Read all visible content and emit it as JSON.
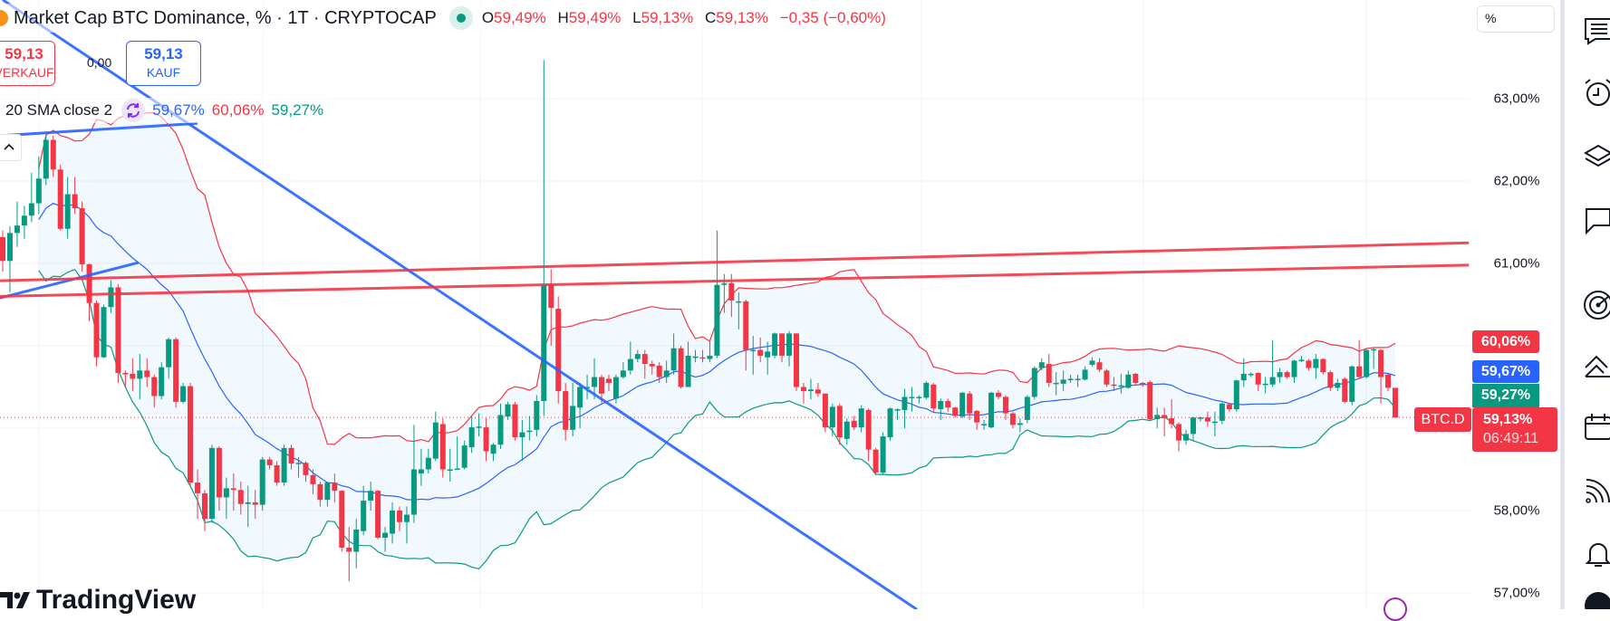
{
  "header": {
    "symbol_title": "Market Cap BTC Dominance, % · 1T · CRYPTOCAP",
    "ohlc": {
      "o_label": "O",
      "o_value": "59,49%",
      "h_label": "H",
      "h_value": "59,49%",
      "l_label": "L",
      "l_value": "59,13%",
      "c_label": "C",
      "c_value": "59,13%",
      "change": "−0,35 (−0,60%)"
    }
  },
  "trade": {
    "sell_price": "59,13",
    "sell_label": "VERKAUF",
    "spread": "0,00",
    "buy_price": "59,13",
    "buy_label": "KAUF"
  },
  "indicator": {
    "name": "20 SMA close 2",
    "basis": "59,67%",
    "upper": "60,06%",
    "lower": "59,27%"
  },
  "price_axis": {
    "unit": "%",
    "ticks": [
      {
        "value": 63,
        "label": "63,00%"
      },
      {
        "value": 62,
        "label": "62,00%"
      },
      {
        "value": 61,
        "label": "61,00%"
      },
      {
        "value": 58,
        "label": "58,00%"
      },
      {
        "value": 57,
        "label": "57,00%"
      }
    ],
    "badges": {
      "upper": "60,06%",
      "basis": "59,67%",
      "lower": "59,27%",
      "symbol": "BTC.D",
      "last": "59,13%",
      "countdown": "06:49:11"
    }
  },
  "colors": {
    "up": "#089981",
    "down": "#f23645",
    "basis": "#2962ff",
    "upper_band": "#f23645",
    "lower_band": "#089981",
    "trendline_blue": "#2962ff",
    "trendline_red": "#f23645"
  },
  "toolbar": {
    "icons": [
      "watchlist-icon",
      "alarm-clock-icon",
      "layers-icon",
      "chat-icon",
      "target-icon",
      "ideas-icon",
      "calendar-icon",
      "stream-icon",
      "notifications-icon",
      "help-icon"
    ]
  },
  "branding": {
    "logo_text": "TradingView"
  },
  "chart_data": {
    "type": "candlestick",
    "ylim": [
      56.6,
      64.2
    ],
    "last_price": 59.13,
    "grid": true,
    "indicator": {
      "type": "bollinger",
      "length": 20,
      "source": "close",
      "mult": 2
    },
    "drawings": [
      {
        "color": "blue",
        "from": [
          0,
          64.2
        ],
        "to": [
          126.7,
          56.8
        ]
      },
      {
        "color": "blue",
        "from": [
          -0.4,
          60.58
        ],
        "to": [
          18.8,
          61.01
        ]
      },
      {
        "color": "blue",
        "from": [
          -0.4,
          62.55
        ],
        "to": [
          27,
          62.7
        ]
      },
      {
        "color": "red",
        "from": [
          -0.4,
          60.79
        ],
        "to": [
          203.2,
          61.25
        ]
      },
      {
        "color": "red",
        "from": [
          -0.4,
          60.6
        ],
        "to": [
          203.2,
          60.98
        ]
      }
    ],
    "ohlc": [
      [
        61.32,
        61.4,
        60.9,
        61.03
      ],
      [
        61.03,
        61.45,
        60.65,
        61.37
      ],
      [
        61.37,
        61.75,
        61.2,
        61.46
      ],
      [
        61.46,
        61.7,
        61.3,
        61.58
      ],
      [
        61.58,
        62.1,
        61.5,
        61.73
      ],
      [
        61.73,
        62.3,
        61.6,
        62.03
      ],
      [
        62.03,
        62.55,
        61.95,
        62.5
      ],
      [
        62.5,
        62.55,
        62.05,
        62.14
      ],
      [
        62.14,
        62.2,
        61.4,
        61.42
      ],
      [
        61.42,
        62.05,
        61.3,
        61.84
      ],
      [
        61.84,
        62.05,
        61.6,
        61.67
      ],
      [
        61.67,
        61.75,
        60.9,
        60.99
      ],
      [
        60.99,
        61.0,
        60.3,
        60.52
      ],
      [
        60.52,
        60.55,
        59.75,
        59.86
      ],
      [
        59.86,
        60.5,
        59.85,
        60.47
      ],
      [
        60.47,
        60.8,
        60.4,
        60.71
      ],
      [
        60.71,
        60.75,
        59.55,
        59.67
      ],
      [
        59.67,
        59.7,
        59.5,
        59.66
      ],
      [
        59.66,
        59.85,
        59.45,
        59.6
      ],
      [
        59.6,
        59.9,
        59.35,
        59.7
      ],
      [
        59.7,
        59.85,
        59.5,
        59.62
      ],
      [
        59.62,
        59.65,
        59.25,
        59.39
      ],
      [
        59.39,
        59.8,
        59.35,
        59.74
      ],
      [
        59.74,
        60.1,
        59.6,
        60.08
      ],
      [
        60.08,
        60.1,
        59.25,
        59.32
      ],
      [
        59.32,
        59.55,
        59.3,
        59.51
      ],
      [
        59.51,
        59.55,
        58.3,
        58.34
      ],
      [
        58.34,
        58.5,
        57.9,
        58.21
      ],
      [
        58.21,
        58.25,
        57.75,
        57.9
      ],
      [
        57.9,
        58.8,
        57.85,
        58.76
      ],
      [
        58.76,
        58.78,
        58.0,
        58.16
      ],
      [
        58.16,
        58.4,
        57.9,
        58.27
      ],
      [
        58.27,
        58.45,
        58.0,
        58.25
      ],
      [
        58.25,
        58.35,
        57.95,
        58.08
      ],
      [
        58.08,
        58.3,
        57.8,
        58.1
      ],
      [
        58.1,
        58.25,
        57.9,
        58.07
      ],
      [
        58.07,
        58.65,
        58.0,
        58.62
      ],
      [
        58.62,
        58.65,
        58.5,
        58.55
      ],
      [
        58.55,
        58.6,
        58.3,
        58.34
      ],
      [
        58.34,
        58.8,
        58.3,
        58.76
      ],
      [
        58.76,
        58.8,
        58.5,
        58.57
      ],
      [
        58.57,
        58.65,
        58.4,
        58.58
      ],
      [
        58.58,
        58.6,
        58.35,
        58.43
      ],
      [
        58.43,
        58.5,
        58.2,
        58.32
      ],
      [
        58.32,
        58.35,
        58.05,
        58.13
      ],
      [
        58.13,
        58.35,
        58.05,
        58.34
      ],
      [
        58.34,
        58.45,
        58.1,
        58.24
      ],
      [
        58.24,
        58.25,
        57.5,
        57.55
      ],
      [
        57.55,
        57.8,
        57.14,
        57.5
      ],
      [
        57.5,
        57.9,
        57.3,
        57.77
      ],
      [
        57.75,
        58.3,
        57.7,
        58.12
      ],
      [
        58.12,
        58.35,
        58.0,
        58.24
      ],
      [
        58.24,
        58.25,
        57.65,
        57.67
      ],
      [
        57.67,
        57.8,
        57.5,
        57.73
      ],
      [
        57.72,
        58.1,
        57.6,
        58.0
      ],
      [
        58.0,
        58.05,
        57.75,
        57.86
      ],
      [
        57.86,
        58.05,
        57.6,
        57.95
      ],
      [
        57.95,
        59.04,
        57.85,
        58.5
      ],
      [
        58.45,
        58.75,
        58.3,
        58.5
      ],
      [
        58.5,
        58.75,
        58.45,
        58.64
      ],
      [
        58.63,
        59.2,
        58.6,
        59.07
      ],
      [
        59.05,
        59.12,
        58.4,
        58.5
      ],
      [
        58.5,
        58.75,
        58.35,
        58.5
      ],
      [
        58.5,
        58.9,
        58.5,
        58.51
      ],
      [
        58.52,
        58.85,
        58.5,
        58.79
      ],
      [
        58.77,
        59.15,
        58.7,
        59.01
      ],
      [
        59.01,
        59.18,
        58.9,
        59.02
      ],
      [
        59.01,
        59.12,
        58.6,
        58.72
      ],
      [
        58.69,
        58.82,
        58.6,
        58.8
      ],
      [
        58.8,
        59.3,
        58.75,
        59.16
      ],
      [
        59.14,
        59.32,
        59.1,
        59.29
      ],
      [
        59.29,
        59.32,
        58.85,
        58.89
      ],
      [
        58.89,
        59.1,
        58.6,
        58.95
      ],
      [
        58.96,
        59.15,
        58.85,
        58.97
      ],
      [
        58.98,
        59.4,
        58.9,
        59.33
      ],
      [
        59.33,
        63.47,
        59.15,
        60.74
      ],
      [
        60.74,
        60.93,
        60.0,
        60.46
      ],
      [
        60.45,
        60.6,
        59.3,
        59.45
      ],
      [
        59.45,
        59.55,
        58.85,
        58.98
      ],
      [
        58.98,
        59.55,
        58.9,
        59.27
      ],
      [
        59.25,
        59.55,
        59.0,
        59.5
      ],
      [
        59.5,
        59.65,
        59.35,
        59.5
      ],
      [
        59.5,
        59.85,
        59.35,
        59.62
      ],
      [
        59.62,
        59.65,
        59.3,
        59.42
      ],
      [
        59.6,
        59.65,
        59.45,
        59.55
      ],
      [
        59.36,
        59.65,
        59.3,
        59.62
      ],
      [
        59.62,
        59.8,
        59.6,
        59.7
      ],
      [
        59.7,
        60.05,
        59.65,
        59.84
      ],
      [
        59.84,
        59.95,
        59.8,
        59.9
      ],
      [
        59.9,
        59.95,
        59.6,
        59.78
      ],
      [
        59.78,
        59.82,
        59.65,
        59.75
      ],
      [
        59.76,
        59.8,
        59.55,
        59.62
      ],
      [
        59.62,
        59.82,
        59.55,
        59.7
      ],
      [
        59.7,
        60.15,
        59.65,
        59.97
      ],
      [
        59.97,
        60.0,
        59.48,
        59.5
      ],
      [
        59.5,
        60.05,
        59.5,
        59.88
      ],
      [
        59.87,
        59.95,
        59.8,
        59.87
      ],
      [
        59.86,
        59.95,
        59.8,
        59.85
      ],
      [
        59.84,
        60.05,
        59.8,
        59.88
      ],
      [
        59.88,
        61.4,
        59.85,
        60.74
      ],
      [
        60.74,
        60.87,
        60.4,
        60.76
      ],
      [
        60.76,
        60.87,
        60.35,
        60.55
      ],
      [
        60.54,
        60.65,
        60.2,
        60.54
      ],
      [
        60.54,
        60.56,
        59.7,
        59.95
      ],
      [
        59.95,
        60.12,
        59.65,
        59.95
      ],
      [
        59.95,
        60.1,
        59.8,
        59.88
      ],
      [
        59.86,
        60.05,
        59.65,
        59.93
      ],
      [
        59.88,
        60.16,
        59.85,
        60.15
      ],
      [
        60.15,
        60.15,
        59.8,
        59.88
      ],
      [
        59.88,
        60.18,
        59.75,
        60.15
      ],
      [
        60.15,
        60.15,
        59.45,
        59.5
      ],
      [
        59.5,
        59.55,
        59.3,
        59.45
      ],
      [
        59.45,
        59.6,
        59.35,
        59.47
      ],
      [
        59.47,
        59.55,
        59.38,
        59.42
      ],
      [
        59.42,
        59.42,
        58.95,
        59.01
      ],
      [
        59.01,
        59.3,
        58.9,
        59.26
      ],
      [
        59.27,
        59.3,
        58.8,
        58.89
      ],
      [
        58.87,
        59.12,
        58.8,
        59.08
      ],
      [
        59.09,
        59.15,
        58.98,
        59.01
      ],
      [
        59.01,
        59.28,
        58.95,
        59.24
      ],
      [
        59.22,
        59.24,
        58.6,
        58.74
      ],
      [
        58.74,
        58.76,
        58.44,
        58.46
      ],
      [
        58.46,
        58.95,
        58.44,
        58.9
      ],
      [
        58.89,
        59.25,
        58.85,
        59.24
      ],
      [
        59.22,
        59.24,
        59.1,
        59.23
      ],
      [
        59.22,
        59.48,
        59.0,
        59.38
      ],
      [
        59.38,
        59.5,
        59.2,
        59.38
      ],
      [
        59.38,
        59.4,
        59.3,
        59.38
      ],
      [
        59.37,
        59.57,
        59.35,
        59.55
      ],
      [
        59.53,
        59.55,
        59.2,
        59.24
      ],
      [
        59.23,
        59.36,
        59.1,
        59.33
      ],
      [
        59.33,
        59.36,
        59.2,
        59.25
      ],
      [
        59.25,
        59.26,
        59.13,
        59.15
      ],
      [
        59.14,
        59.44,
        59.12,
        59.43
      ],
      [
        59.42,
        59.45,
        59.1,
        59.18
      ],
      [
        59.21,
        59.22,
        58.98,
        59.07
      ],
      [
        59.05,
        59.1,
        58.98,
        59.05
      ],
      [
        59.01,
        59.44,
        59.0,
        59.43
      ],
      [
        59.43,
        59.46,
        59.35,
        59.38
      ],
      [
        59.38,
        59.4,
        59.1,
        59.18
      ],
      [
        59.18,
        59.2,
        59.0,
        59.04
      ],
      [
        59.04,
        59.12,
        58.95,
        59.06
      ],
      [
        59.1,
        59.4,
        59.06,
        59.38
      ],
      [
        59.38,
        59.75,
        59.35,
        59.73
      ],
      [
        59.73,
        59.85,
        59.7,
        59.8
      ],
      [
        59.78,
        59.9,
        59.5,
        59.55
      ],
      [
        59.55,
        59.68,
        59.4,
        59.55
      ],
      [
        59.54,
        59.7,
        59.45,
        59.59
      ],
      [
        59.59,
        59.65,
        59.55,
        59.6
      ],
      [
        59.59,
        59.65,
        59.5,
        59.6
      ],
      [
        59.59,
        59.75,
        59.58,
        59.71
      ],
      [
        59.77,
        59.86,
        59.75,
        59.82
      ],
      [
        59.8,
        59.85,
        59.68,
        59.71
      ],
      [
        59.7,
        59.72,
        59.5,
        59.53
      ],
      [
        59.53,
        59.62,
        59.45,
        59.52
      ],
      [
        59.52,
        59.66,
        59.42,
        59.52
      ],
      [
        59.49,
        59.7,
        59.48,
        59.65
      ],
      [
        59.66,
        59.67,
        59.52,
        59.55
      ],
      [
        59.55,
        59.56,
        59.5,
        59.54
      ],
      [
        59.56,
        59.58,
        59.1,
        59.11
      ],
      [
        59.11,
        59.25,
        59.0,
        59.16
      ],
      [
        59.16,
        59.25,
        58.9,
        59.12
      ],
      [
        59.12,
        59.35,
        59.0,
        59.05
      ],
      [
        59.05,
        59.07,
        58.72,
        58.85
      ],
      [
        58.85,
        58.98,
        58.8,
        58.93
      ],
      [
        58.93,
        59.14,
        58.85,
        59.13
      ],
      [
        59.13,
        59.14,
        59.08,
        59.13
      ],
      [
        59.13,
        59.2,
        59.02,
        59.08
      ],
      [
        59.08,
        59.2,
        58.9,
        59.08
      ],
      [
        59.09,
        59.31,
        59.05,
        59.3
      ],
      [
        59.29,
        59.3,
        59.2,
        59.23
      ],
      [
        59.23,
        59.59,
        59.2,
        59.58
      ],
      [
        59.58,
        59.85,
        59.5,
        59.66
      ],
      [
        59.66,
        59.68,
        59.62,
        59.66
      ],
      [
        59.67,
        59.68,
        59.45,
        59.53
      ],
      [
        59.53,
        59.62,
        59.42,
        59.54
      ],
      [
        59.53,
        60.07,
        59.5,
        59.62
      ],
      [
        59.62,
        59.73,
        59.55,
        59.68
      ],
      [
        59.68,
        59.7,
        59.6,
        59.62
      ],
      [
        59.62,
        59.83,
        59.55,
        59.82
      ],
      [
        59.82,
        59.88,
        59.8,
        59.83
      ],
      [
        59.82,
        59.84,
        59.7,
        59.73
      ],
      [
        59.73,
        59.9,
        59.6,
        59.84
      ],
      [
        59.84,
        59.85,
        59.65,
        59.68
      ],
      [
        59.68,
        59.7,
        59.45,
        59.49
      ],
      [
        59.49,
        59.6,
        59.45,
        59.55
      ],
      [
        59.6,
        59.62,
        59.3,
        59.32
      ],
      [
        59.32,
        59.76,
        59.28,
        59.75
      ],
      [
        59.75,
        60.07,
        59.6,
        59.62
      ],
      [
        59.62,
        59.96,
        59.6,
        59.95
      ],
      [
        59.95,
        59.97,
        59.72,
        59.96
      ],
      [
        59.95,
        59.96,
        59.3,
        59.62
      ],
      [
        59.65,
        59.66,
        59.45,
        59.49
      ],
      [
        59.49,
        59.49,
        59.13,
        59.13
      ]
    ]
  }
}
